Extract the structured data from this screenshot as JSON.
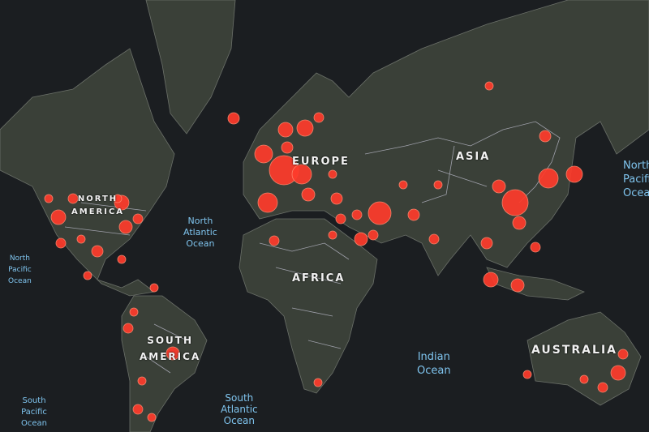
{
  "colors": {
    "background": "#1b1e21",
    "land": "#3a4038",
    "marker": "#ff3b2b",
    "ocean_label": "#7fc4ee",
    "continent_label": "#f1f1f1"
  },
  "continents": {
    "north_america": [
      "NORTH",
      "AMERICA"
    ],
    "europe": "EUROPE",
    "asia": "ASIA",
    "africa": "AFRICA",
    "south_america": [
      "SOUTH",
      "AMERICA"
    ],
    "australia": "AUSTRALIA"
  },
  "oceans": {
    "north_atlantic": [
      "North",
      "Atlantic",
      "Ocean"
    ],
    "north_pacific_left": [
      "North",
      "Pacific",
      "Ocean"
    ],
    "south_pacific": [
      "South",
      "Pacific",
      "Ocean"
    ],
    "indian": [
      "Indian",
      "Ocean"
    ],
    "south_atlantic": [
      "South",
      "Atlantic",
      "Ocean"
    ],
    "north_pacific_right": [
      "North",
      "Pacific",
      "Ocean"
    ]
  },
  "markers": [
    [
      603,
      106,
      5
    ],
    [
      288,
      146,
      7
    ],
    [
      352,
      160,
      9
    ],
    [
      376,
      158,
      10
    ],
    [
      393,
      145,
      6
    ],
    [
      325,
      190,
      11
    ],
    [
      354,
      182,
      7
    ],
    [
      350,
      210,
      18
    ],
    [
      372,
      215,
      12
    ],
    [
      330,
      250,
      12
    ],
    [
      380,
      240,
      8
    ],
    [
      410,
      215,
      5
    ],
    [
      415,
      245,
      7
    ],
    [
      440,
      265,
      6
    ],
    [
      468,
      263,
      14
    ],
    [
      445,
      295,
      8
    ],
    [
      460,
      290,
      6
    ],
    [
      510,
      265,
      7
    ],
    [
      535,
      295,
      6
    ],
    [
      600,
      300,
      7
    ],
    [
      605,
      345,
      9
    ],
    [
      638,
      352,
      8
    ],
    [
      676,
      220,
      12
    ],
    [
      708,
      215,
      10
    ],
    [
      672,
      168,
      7
    ],
    [
      635,
      250,
      16
    ],
    [
      615,
      230,
      8
    ],
    [
      640,
      275,
      8
    ],
    [
      660,
      305,
      6
    ],
    [
      150,
      250,
      9
    ],
    [
      72,
      268,
      9
    ],
    [
      75,
      300,
      6
    ],
    [
      100,
      295,
      5
    ],
    [
      120,
      310,
      7
    ],
    [
      150,
      320,
      5
    ],
    [
      155,
      280,
      8
    ],
    [
      170,
      270,
      6
    ],
    [
      145,
      245,
      5
    ],
    [
      90,
      245,
      6
    ],
    [
      60,
      245,
      5
    ],
    [
      108,
      340,
      5
    ],
    [
      190,
      355,
      5
    ],
    [
      165,
      385,
      5
    ],
    [
      158,
      405,
      6
    ],
    [
      213,
      436,
      8
    ],
    [
      175,
      470,
      5
    ],
    [
      170,
      505,
      6
    ],
    [
      187,
      515,
      5
    ],
    [
      338,
      297,
      6
    ],
    [
      410,
      290,
      5
    ],
    [
      420,
      270,
      6
    ],
    [
      392,
      472,
      5
    ],
    [
      762,
      460,
      9
    ],
    [
      768,
      437,
      6
    ],
    [
      743,
      478,
      6
    ],
    [
      720,
      468,
      5
    ],
    [
      650,
      462,
      5
    ],
    [
      540,
      228,
      5
    ],
    [
      497,
      228,
      5
    ]
  ]
}
